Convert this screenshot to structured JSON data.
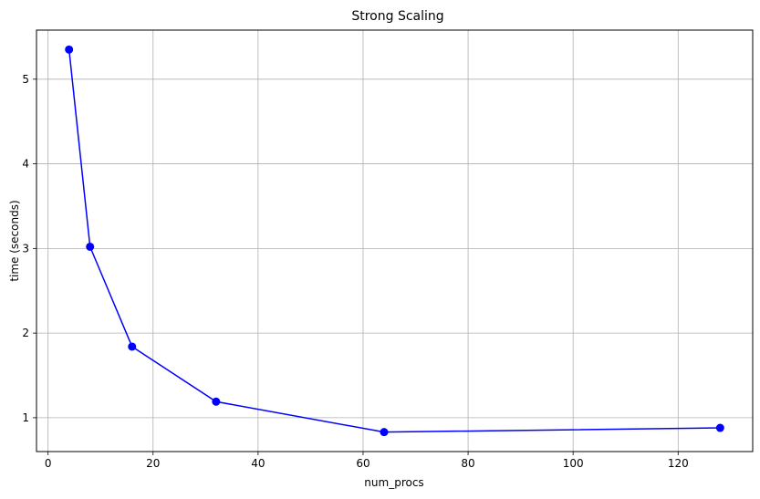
{
  "chart_data": {
    "type": "line",
    "title": "Strong Scaling",
    "xlabel": "num_procs",
    "ylabel": "time (seconds)",
    "grid": true,
    "xlim": [
      -2.2,
      134.2
    ],
    "ylim": [
      0.6,
      5.58
    ],
    "xticks": [
      0,
      20,
      40,
      60,
      80,
      100,
      120
    ],
    "yticks": [
      1,
      2,
      3,
      4,
      5
    ],
    "series": [
      {
        "color": "#0000ff",
        "marker": "circle",
        "x": [
          4,
          8,
          16,
          32,
          64,
          128
        ],
        "y": [
          5.35,
          3.02,
          1.84,
          1.19,
          0.83,
          0.88
        ]
      }
    ]
  }
}
